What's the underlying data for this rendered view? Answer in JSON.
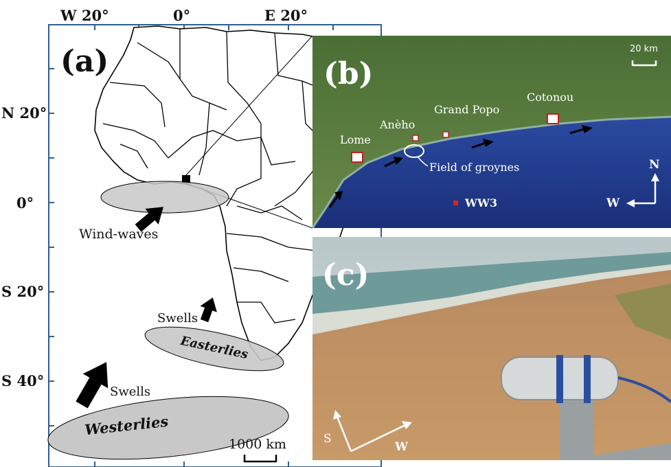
{
  "figure": {
    "panel_a": {
      "letter": "(a)",
      "lon_labels": [
        "W 20°",
        "0°",
        "E 20°"
      ],
      "lat_labels": [
        "N 20°",
        "0°",
        "S 20°",
        "S 40°"
      ],
      "wind_waves_label": "Wind-waves",
      "swells_label_1": "Swells",
      "swells_label_2": "Swells",
      "easterlies_label": "Easterlies",
      "westerlies_label": "Westerlies",
      "scale_label": "1000 km"
    },
    "panel_b": {
      "letter": "(b)",
      "scale_label": "20 km",
      "cities": [
        "Lome",
        "Anèho",
        "Grand Popo",
        "Cotonou"
      ],
      "groynes_label": "Field of groynes",
      "ww3_label": "WW3",
      "compass_n": "N",
      "compass_w": "W"
    },
    "panel_c": {
      "letter": "(c)",
      "compass_s": "S",
      "compass_w": "W"
    },
    "colors": {
      "map_frame": "#2f5f8f",
      "ellipse_fill": "#c8c8c8",
      "ocean": "#1f3f8f",
      "land": "#4f7a3a",
      "sand": "#c28a5a"
    }
  }
}
